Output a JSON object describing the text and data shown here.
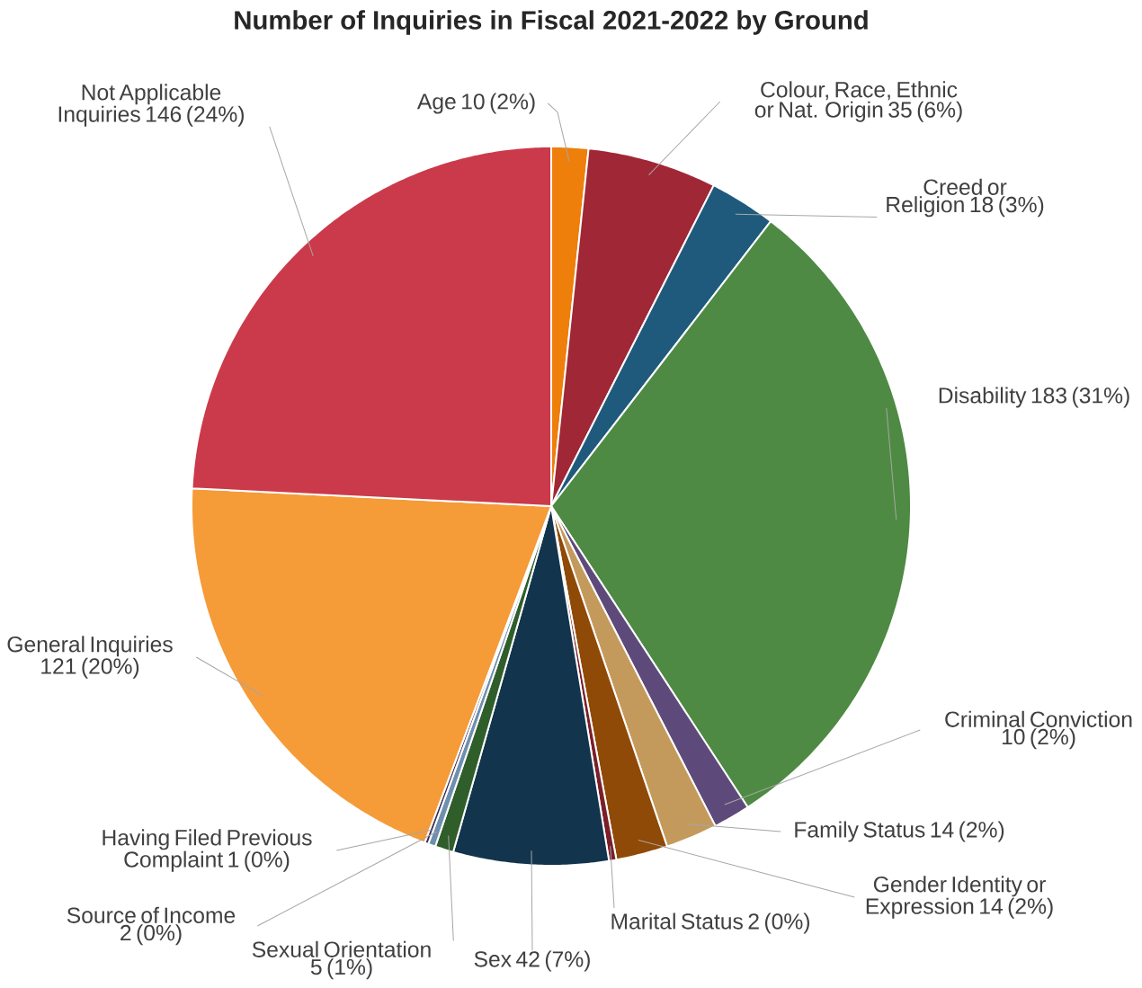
{
  "chart_data": {
    "type": "pie",
    "title": "Number of Inquiries in Fiscal 2021-2022 by Ground",
    "categories": [
      "Age",
      "Colour, Race, Ethnic or Nat. Origin",
      "Creed or Religion",
      "Disability",
      "Criminal Conviction",
      "Family Status",
      "Gender Identity or Expression",
      "Marital Status",
      "Sex",
      "Sexual Orientation",
      "Source of Income",
      "Having Filed Previous Complaint",
      "General Inquiries",
      "Not Applicable Inquiries"
    ],
    "values": [
      10,
      35,
      18,
      183,
      10,
      14,
      14,
      2,
      42,
      5,
      2,
      1,
      121,
      146
    ],
    "value_labels": [
      "10 (2%)",
      "35 (6%)",
      "18 (3%)",
      "183 (31%)",
      "10 (2%)",
      "14 (2%)",
      "14 (2%)",
      "2 (0%)",
      "42 (7%)",
      "5 (1%)",
      "2 (0%)",
      "1 (0%)",
      "121 (20%)",
      "146 (24%)"
    ],
    "colors": [
      "#ee7f0b",
      "#a02736",
      "#1f5a7c",
      "#4e8a43",
      "#5e4a7a",
      "#c49a5c",
      "#8f4a07",
      "#7a1f2a",
      "#12344d",
      "#2f5e2a",
      "#6f8fb0",
      "#3d2d55",
      "#f59b38",
      "#cb3a4a"
    ]
  }
}
